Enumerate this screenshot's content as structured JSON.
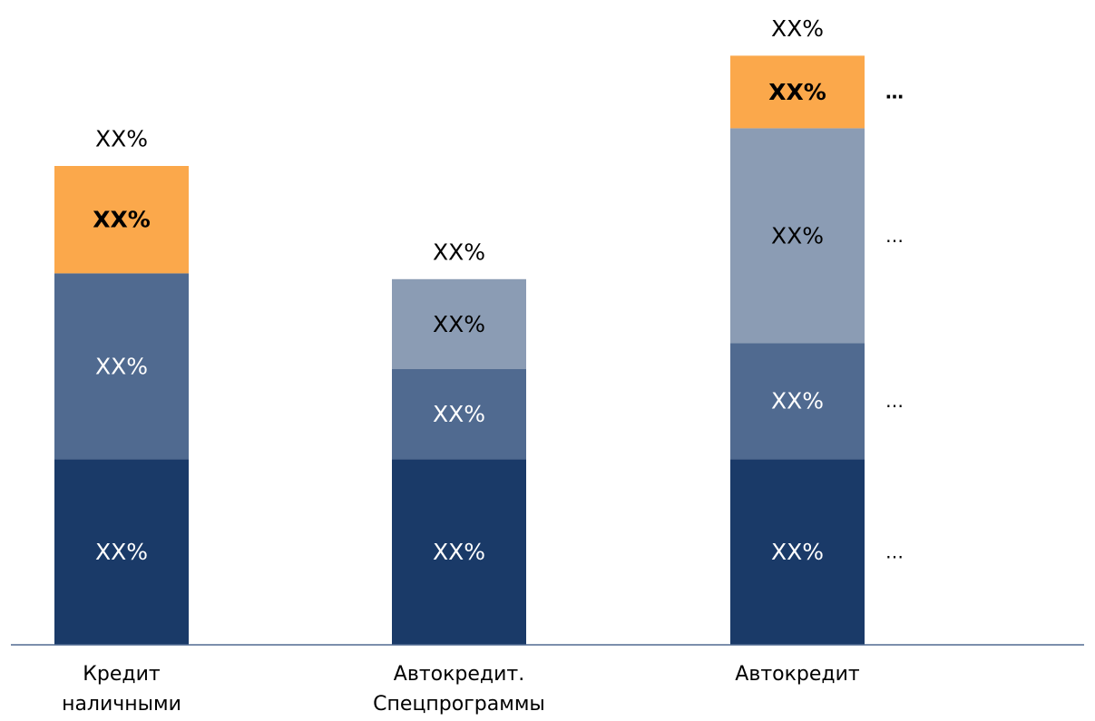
{
  "chart_data": {
    "type": "bar",
    "stacked": true,
    "title": "",
    "xlabel": "",
    "ylabel": "",
    "legend": "none",
    "grid": false,
    "ylim": [
      0,
      100
    ],
    "categories": [
      [
        "Кредит",
        "наличными"
      ],
      [
        "Автокредит.",
        "Спецпрограммы"
      ],
      [
        "Автокредит"
      ]
    ],
    "series": [
      {
        "color": "#1a3a68",
        "text_color": "#ffffff",
        "bold": false,
        "values": [
          32,
          32,
          32
        ],
        "labels": [
          "XX%",
          "XX%",
          "XX%"
        ]
      },
      {
        "color": "#506a90",
        "text_color": "#ffffff",
        "bold": false,
        "values": [
          32,
          15.5,
          20
        ],
        "labels": [
          "XX%",
          "XX%",
          "XX%"
        ]
      },
      {
        "color": "#8b9cb4",
        "text_color": "#000000",
        "bold": false,
        "values": [
          0,
          15.5,
          37
        ],
        "labels": [
          "",
          "XX%",
          "XX%"
        ]
      },
      {
        "color": "#fba84b",
        "text_color": "#000000",
        "bold": true,
        "values": [
          18.5,
          0,
          12.5
        ],
        "labels": [
          "XX%",
          "",
          "XX%"
        ]
      }
    ],
    "totals": [
      {
        "label": "XX%",
        "value": 82.5
      },
      {
        "label": "XX%",
        "value": 63
      },
      {
        "label": "XX%",
        "value": 101.5
      }
    ],
    "annotations": [
      {
        "text": "…",
        "category": 2,
        "series": 0,
        "bold": false
      },
      {
        "text": "…",
        "category": 2,
        "series": 1,
        "bold": false
      },
      {
        "text": "…",
        "category": 2,
        "series": 2,
        "bold": false
      },
      {
        "text": "…",
        "category": 2,
        "series": 3,
        "bold": true
      }
    ],
    "axis_color": "#506a90"
  }
}
